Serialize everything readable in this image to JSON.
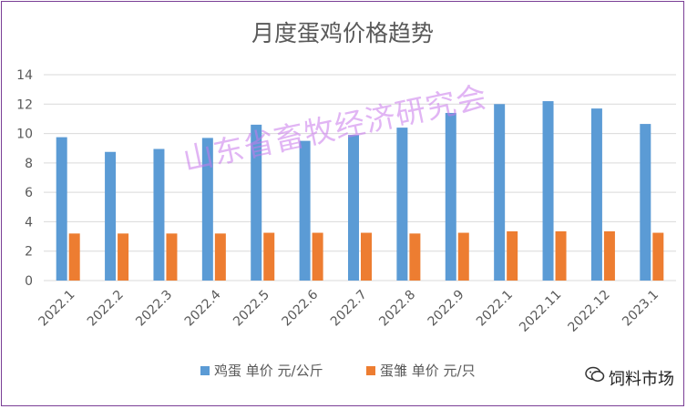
{
  "chart_data": {
    "type": "bar",
    "title": "月度蛋鸡价格趋势",
    "categories": [
      "2022.1",
      "2022.2",
      "2022.3",
      "2022.4",
      "2022.5",
      "2022.6",
      "2022.7",
      "2022.8",
      "2022.9",
      "2022.1",
      "2022.11",
      "2022.12",
      "2023.1"
    ],
    "series": [
      {
        "name": "鸡蛋 单价 元/公斤",
        "color": "#5b9bd5",
        "values": [
          9.75,
          8.75,
          8.95,
          9.7,
          10.6,
          9.5,
          9.9,
          10.4,
          11.4,
          12.0,
          12.2,
          11.7,
          10.65
        ]
      },
      {
        "name": "蛋雏 单价 元/只",
        "color": "#ed7d31",
        "values": [
          3.2,
          3.2,
          3.2,
          3.2,
          3.25,
          3.25,
          3.25,
          3.2,
          3.25,
          3.35,
          3.35,
          3.35,
          3.25
        ]
      }
    ],
    "yticks": [
      0,
      2,
      4,
      6,
      8,
      10,
      12,
      14
    ],
    "ylim": [
      0,
      14
    ],
    "grid": true,
    "legend_position": "bottom"
  },
  "watermark_text": "山东省畜牧经济研究会",
  "brand_label": "饲料市场",
  "colors": {
    "frame": "#7a3e96",
    "grid": "#d9d9d9",
    "axis_text": "#595959"
  }
}
